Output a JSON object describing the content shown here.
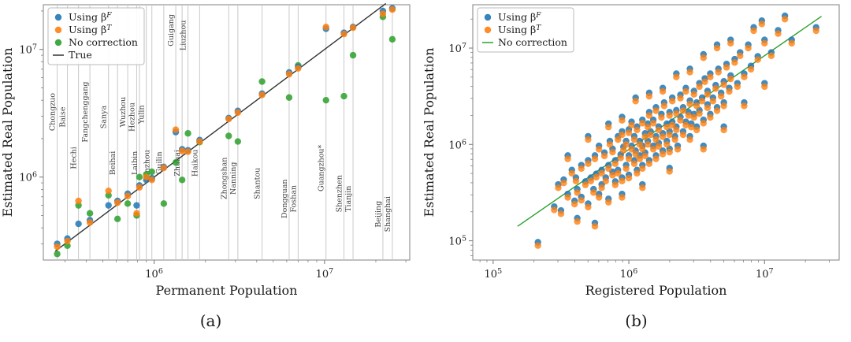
{
  "figure": {
    "caption_a": "(a)",
    "caption_b": "(b)"
  },
  "colors": {
    "betaF": "#1f77b4",
    "betaT": "#ff7f0e",
    "none": "#2ca02c",
    "true_line": "#333333",
    "grid": "#c9c9c9",
    "spine": "#808080",
    "tick_text": "#222222"
  },
  "chart_data": [
    {
      "type": "scatter",
      "id": "a",
      "xlabel": "Permanent Population",
      "ylabel": "Estimated Real Population",
      "xlim_log": [
        5.35,
        7.5
      ],
      "ylim_log": [
        5.35,
        7.35
      ],
      "xtick_exponents": [
        6,
        7
      ],
      "ytick_exponents": [
        6,
        7
      ],
      "grid": "vertical-city-lines",
      "legend_position": "upper-left",
      "legend": [
        {
          "pre": "Using β",
          "sup": "F",
          "marker": "dot",
          "color": "betaF"
        },
        {
          "pre": "Using β",
          "sup": "T",
          "marker": "dot",
          "color": "betaT"
        },
        {
          "pre": "No correction",
          "sup": "",
          "marker": "dot",
          "color": "none"
        },
        {
          "pre": "True",
          "sup": "",
          "marker": "line",
          "color": "true_line"
        }
      ],
      "true_line_log": {
        "x1": 5.42,
        "y1": 5.42,
        "x2": 7.36,
        "y2": 7.36
      },
      "series_names": [
        "Using βF",
        "Using βT",
        "No correction"
      ],
      "cities": [
        {
          "name": "Chongzuo",
          "pop": 270000,
          "betaF": 300000,
          "betaT": 285000,
          "none": 250000,
          "band": 0.42
        },
        {
          "name": "Baise",
          "pop": 310000,
          "betaF": 330000,
          "betaT": 315000,
          "none": 290000,
          "band": 0.44
        },
        {
          "name": "Hechi",
          "pop": 360000,
          "betaF": 430000,
          "betaT": 650000,
          "none": 600000,
          "band": 0.6
        },
        {
          "name": "Fangchenggang",
          "pop": 420000,
          "betaF": 460000,
          "betaT": 440000,
          "none": 520000,
          "band": 0.42
        },
        {
          "name": "Sanya",
          "pop": 540000,
          "betaF": 600000,
          "betaT": 780000,
          "none": 720000,
          "band": 0.44
        },
        {
          "name": "Beihai",
          "pop": 610000,
          "betaF": 650000,
          "betaT": 630000,
          "none": 470000,
          "band": 0.62
        },
        {
          "name": "Wuzhou",
          "pop": 700000,
          "betaF": 740000,
          "betaT": 710000,
          "none": 620000,
          "band": 0.42
        },
        {
          "name": "Hezhou",
          "pop": 790000,
          "betaF": 600000,
          "betaT": 520000,
          "none": 500000,
          "band": 0.44
        },
        {
          "name": "Laibin",
          "pop": 820000,
          "betaF": 860000,
          "betaT": 830000,
          "none": 1000000,
          "band": 0.62
        },
        {
          "name": "Yulin",
          "pop": 900000,
          "betaF": 950000,
          "betaT": 1000000,
          "none": 1050000,
          "band": 0.43
        },
        {
          "name": "Qinzhou",
          "pop": 970000,
          "betaF": 980000,
          "betaT": 950000,
          "none": 1100000,
          "band": 0.63
        },
        {
          "name": "Guilin",
          "pop": 1140000,
          "betaF": 1200000,
          "betaT": 1180000,
          "none": 620000,
          "band": 0.62
        },
        {
          "name": "Guigang",
          "pop": 1340000,
          "betaF": 2250000,
          "betaT": 2350000,
          "none": 1300000,
          "band": 0.1
        },
        {
          "name": "Zhuhai",
          "pop": 1460000,
          "betaF": 1650000,
          "betaT": 1600000,
          "none": 950000,
          "band": 0.62
        },
        {
          "name": "Liuzhou",
          "pop": 1580000,
          "betaF": 1620000,
          "betaT": 1580000,
          "none": 2200000,
          "band": 0.12
        },
        {
          "name": "Haikou",
          "pop": 1850000,
          "betaF": 1950000,
          "betaT": 1900000,
          "none": 1880000,
          "band": 0.62
        },
        {
          "name": "Zhongshan",
          "pop": 2740000,
          "betaF": 2900000,
          "betaT": 2850000,
          "none": 2100000,
          "band": 0.68
        },
        {
          "name": "Nanning",
          "pop": 3100000,
          "betaF": 3300000,
          "betaT": 3200000,
          "none": 1900000,
          "band": 0.68
        },
        {
          "name": "Shantou",
          "pop": 4300000,
          "betaF": 4500000,
          "betaT": 4400000,
          "none": 5600000,
          "band": 0.7
        },
        {
          "name": "Dongguan",
          "pop": 6200000,
          "betaF": 6600000,
          "betaT": 6400000,
          "none": 4200000,
          "band": 0.76
        },
        {
          "name": "Foshan",
          "pop": 7000000,
          "betaF": 7300000,
          "betaT": 7100000,
          "none": 7500000,
          "band": 0.76
        },
        {
          "name": "Guangzhou*",
          "pop": 10200000,
          "betaF": 14500000,
          "betaT": 15000000,
          "none": 4000000,
          "band": 0.64
        },
        {
          "name": "Shenzhen",
          "pop": 13000000,
          "betaF": 13500000,
          "betaT": 13200000,
          "none": 4300000,
          "band": 0.74
        },
        {
          "name": "Tianjin",
          "pop": 14700000,
          "betaF": 15000000,
          "betaT": 14800000,
          "none": 9000000,
          "band": 0.76
        },
        {
          "name": "Beijing",
          "pop": 22000000,
          "betaF": 20000000,
          "betaT": 19000000,
          "none": 18000000,
          "band": 0.82
        },
        {
          "name": "Shanghai",
          "pop": 25000000,
          "betaF": 21000000,
          "betaT": 20500000,
          "none": 12000000,
          "band": 0.82
        }
      ]
    },
    {
      "type": "scatter",
      "id": "b",
      "xlabel": "Registered Population",
      "ylabel": "Estimated Real Population",
      "xlim_log": [
        4.85,
        7.55
      ],
      "ylim_log": [
        4.8,
        7.45
      ],
      "xtick_exponents": [
        5,
        6,
        7
      ],
      "ytick_exponents": [
        5,
        6,
        7
      ],
      "grid": "none",
      "legend_position": "upper-left",
      "legend": [
        {
          "pre": "Using β",
          "sup": "F",
          "marker": "dot",
          "color": "betaF"
        },
        {
          "pre": "Using β",
          "sup": "T",
          "marker": "dot",
          "color": "betaT"
        },
        {
          "pre": "No correction",
          "sup": "",
          "marker": "line",
          "color": "none"
        }
      ],
      "fit_line_log": {
        "x1": 5.18,
        "y1": 5.15,
        "x2": 7.42,
        "y2": 7.33
      },
      "betaF_log_dy": 0.035,
      "points_betaT_log": [
        [
          5.33,
          4.95
        ],
        [
          5.45,
          5.32
        ],
        [
          5.48,
          5.55
        ],
        [
          5.5,
          5.28
        ],
        [
          5.52,
          5.6
        ],
        [
          5.55,
          5.45
        ],
        [
          5.58,
          5.7
        ],
        [
          5.6,
          5.38
        ],
        [
          5.61,
          5.62
        ],
        [
          5.62,
          5.5
        ],
        [
          5.65,
          5.75
        ],
        [
          5.65,
          5.42
        ],
        [
          5.68,
          5.58
        ],
        [
          5.7,
          5.8
        ],
        [
          5.7,
          5.35
        ],
        [
          5.72,
          5.62
        ],
        [
          5.74,
          5.5
        ],
        [
          5.75,
          5.85
        ],
        [
          5.76,
          5.66
        ],
        [
          5.78,
          5.45
        ],
        [
          5.78,
          5.95
        ],
        [
          5.8,
          5.7
        ],
        [
          5.8,
          5.55
        ],
        [
          5.82,
          5.88
        ],
        [
          5.83,
          5.62
        ],
        [
          5.85,
          5.75
        ],
        [
          5.85,
          5.4
        ],
        [
          5.86,
          6.0
        ],
        [
          5.88,
          5.68
        ],
        [
          5.88,
          5.92
        ],
        [
          5.9,
          5.58
        ],
        [
          5.9,
          5.8
        ],
        [
          5.92,
          6.05
        ],
        [
          5.92,
          5.7
        ],
        [
          5.94,
          5.86
        ],
        [
          5.95,
          5.62
        ],
        [
          5.95,
          6.1
        ],
        [
          5.96,
          5.94
        ],
        [
          5.98,
          5.75
        ],
        [
          5.98,
          6.0
        ],
        [
          6.0,
          5.85
        ],
        [
          6.0,
          6.12
        ],
        [
          6.0,
          5.65
        ],
        [
          6.02,
          5.95
        ],
        [
          6.02,
          6.2
        ],
        [
          6.04,
          5.8
        ],
        [
          6.04,
          6.05
        ],
        [
          6.05,
          5.9
        ],
        [
          6.06,
          6.15
        ],
        [
          6.06,
          5.7
        ],
        [
          6.08,
          6.0
        ],
        [
          6.08,
          5.85
        ],
        [
          6.1,
          6.22
        ],
        [
          6.1,
          5.95
        ],
        [
          6.1,
          5.75
        ],
        [
          6.12,
          6.08
        ],
        [
          6.12,
          5.88
        ],
        [
          6.14,
          6.18
        ],
        [
          6.14,
          6.0
        ],
        [
          6.15,
          5.8
        ],
        [
          6.15,
          6.3
        ],
        [
          6.16,
          6.1
        ],
        [
          6.18,
          5.95
        ],
        [
          6.18,
          6.22
        ],
        [
          6.2,
          6.05
        ],
        [
          6.2,
          5.85
        ],
        [
          6.2,
          6.35
        ],
        [
          6.22,
          6.15
        ],
        [
          6.22,
          5.98
        ],
        [
          6.24,
          6.28
        ],
        [
          6.25,
          6.08
        ],
        [
          6.25,
          5.9
        ],
        [
          6.26,
          6.4
        ],
        [
          6.28,
          6.18
        ],
        [
          6.28,
          6.0
        ],
        [
          6.3,
          6.3
        ],
        [
          6.3,
          6.1
        ],
        [
          6.3,
          5.92
        ],
        [
          6.32,
          6.45
        ],
        [
          6.32,
          6.2
        ],
        [
          6.34,
          6.05
        ],
        [
          6.35,
          6.32
        ],
        [
          6.35,
          6.15
        ],
        [
          6.36,
          5.95
        ],
        [
          6.38,
          6.48
        ],
        [
          6.38,
          6.25
        ],
        [
          6.4,
          6.1
        ],
        [
          6.4,
          6.35
        ],
        [
          6.42,
          6.2
        ],
        [
          6.42,
          6.55
        ],
        [
          6.44,
          6.3
        ],
        [
          6.45,
          6.05
        ],
        [
          6.45,
          6.42
        ],
        [
          6.46,
          6.18
        ],
        [
          6.48,
          6.52
        ],
        [
          6.48,
          6.28
        ],
        [
          6.5,
          6.4
        ],
        [
          6.5,
          6.15
        ],
        [
          6.52,
          6.6
        ],
        [
          6.52,
          6.32
        ],
        [
          6.54,
          6.45
        ],
        [
          6.55,
          6.22
        ],
        [
          6.56,
          6.65
        ],
        [
          6.58,
          6.38
        ],
        [
          6.58,
          6.52
        ],
        [
          6.6,
          6.28
        ],
        [
          6.6,
          6.7
        ],
        [
          6.62,
          6.45
        ],
        [
          6.64,
          6.58
        ],
        [
          6.65,
          6.35
        ],
        [
          6.66,
          6.75
        ],
        [
          6.68,
          6.5
        ],
        [
          6.7,
          6.62
        ],
        [
          6.7,
          6.4
        ],
        [
          6.72,
          6.8
        ],
        [
          6.74,
          6.55
        ],
        [
          6.75,
          6.68
        ],
        [
          6.78,
          6.85
        ],
        [
          6.8,
          6.6
        ],
        [
          6.82,
          6.92
        ],
        [
          6.85,
          6.7
        ],
        [
          6.88,
          7.0
        ],
        [
          6.9,
          6.78
        ],
        [
          6.95,
          6.88
        ],
        [
          7.0,
          7.05
        ],
        [
          7.05,
          6.92
        ],
        [
          7.1,
          7.15
        ],
        [
          7.2,
          7.05
        ],
        [
          7.38,
          7.18
        ],
        [
          6.92,
          7.18
        ],
        [
          6.75,
          7.05
        ],
        [
          6.55,
          6.9
        ],
        [
          6.35,
          6.7
        ],
        [
          6.15,
          6.5
        ],
        [
          5.95,
          6.25
        ],
        [
          5.7,
          6.05
        ],
        [
          5.55,
          5.85
        ],
        [
          6.05,
          6.45
        ],
        [
          5.85,
          6.18
        ],
        [
          6.25,
          6.55
        ],
        [
          6.45,
          6.75
        ],
        [
          6.65,
          7.0
        ],
        [
          5.62,
          5.2
        ],
        [
          5.95,
          5.45
        ],
        [
          6.3,
          5.72
        ],
        [
          6.55,
          5.95
        ],
        [
          6.1,
          5.55
        ],
        [
          5.75,
          5.15
        ],
        [
          6.7,
          6.15
        ],
        [
          6.85,
          6.4
        ],
        [
          7.0,
          6.6
        ],
        [
          7.15,
          7.3
        ],
        [
          6.98,
          7.25
        ]
      ]
    }
  ]
}
